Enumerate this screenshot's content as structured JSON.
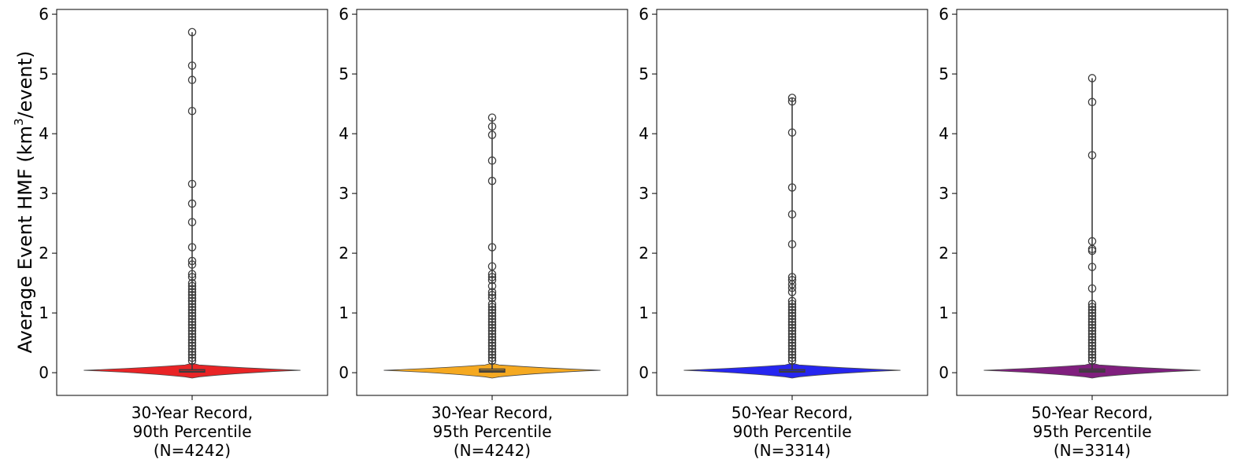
{
  "chart_data": {
    "type": "violin",
    "ylabel": "Average Event HMF (km³/event)",
    "ylabel_parts": {
      "main": "Average Event HMF (km",
      "sup": "3",
      "tail": "/event)"
    },
    "ylim": [
      -0.38,
      6.08
    ],
    "yticks": [
      "0",
      "1",
      "2",
      "3",
      "4",
      "5",
      "6"
    ],
    "grid": false,
    "panels": [
      {
        "label_lines": [
          "30-Year Record,",
          "90th Percentile",
          "(N=4242)"
        ],
        "color": "#e8191b",
        "box": {
          "q1": 0.01,
          "median": 0.02,
          "q3": 0.05
        },
        "whisker": [
          0.0,
          5.7
        ],
        "outliers": [
          5.7,
          5.14,
          4.9,
          4.38,
          3.16,
          2.83,
          2.52,
          2.1,
          1.87,
          1.81,
          1.65,
          1.6,
          1.5,
          1.45,
          1.4,
          1.35,
          1.3,
          1.25,
          1.2,
          1.15,
          1.1,
          1.05,
          1.0,
          0.95,
          0.9,
          0.85,
          0.8,
          0.75,
          0.7,
          0.65,
          0.6,
          0.55,
          0.5,
          0.45,
          0.4,
          0.35,
          0.3,
          0.25,
          0.2
        ]
      },
      {
        "label_lines": [
          "30-Year Record,",
          "95th Percentile",
          "(N=4242)"
        ],
        "color": "#f5a516",
        "box": {
          "q1": 0.01,
          "median": 0.03,
          "q3": 0.06
        },
        "whisker": [
          0.0,
          4.27
        ],
        "outliers": [
          4.27,
          4.12,
          3.98,
          3.55,
          3.21,
          2.1,
          1.78,
          1.65,
          1.6,
          1.55,
          1.45,
          1.35,
          1.3,
          1.25,
          1.15,
          1.1,
          1.05,
          1.0,
          0.95,
          0.9,
          0.85,
          0.8,
          0.75,
          0.7,
          0.65,
          0.6,
          0.55,
          0.5,
          0.45,
          0.4,
          0.35,
          0.3,
          0.25,
          0.2
        ]
      },
      {
        "label_lines": [
          "50-Year Record,",
          "90th Percentile",
          "(N=3314)"
        ],
        "color": "#1b1bf0",
        "box": {
          "q1": 0.01,
          "median": 0.02,
          "q3": 0.05
        },
        "whisker": [
          0.0,
          4.6
        ],
        "outliers": [
          4.6,
          4.54,
          4.02,
          3.1,
          2.65,
          2.15,
          1.6,
          1.55,
          1.48,
          1.42,
          1.35,
          1.2,
          1.15,
          1.1,
          1.05,
          1.0,
          0.95,
          0.9,
          0.85,
          0.8,
          0.75,
          0.7,
          0.65,
          0.6,
          0.55,
          0.5,
          0.45,
          0.4,
          0.35,
          0.3,
          0.25,
          0.2
        ]
      },
      {
        "label_lines": [
          "50-Year Record,",
          "95th Percentile",
          "(N=3314)"
        ],
        "color": "#7a1478",
        "box": {
          "q1": 0.01,
          "median": 0.03,
          "q3": 0.06
        },
        "whisker": [
          0.0,
          4.93
        ],
        "outliers": [
          4.93,
          4.53,
          3.64,
          2.2,
          2.07,
          2.04,
          1.77,
          1.41,
          1.15,
          1.1,
          1.05,
          1.0,
          0.95,
          0.9,
          0.85,
          0.8,
          0.75,
          0.7,
          0.65,
          0.6,
          0.55,
          0.5,
          0.45,
          0.4,
          0.35,
          0.3,
          0.25,
          0.2
        ]
      }
    ]
  }
}
